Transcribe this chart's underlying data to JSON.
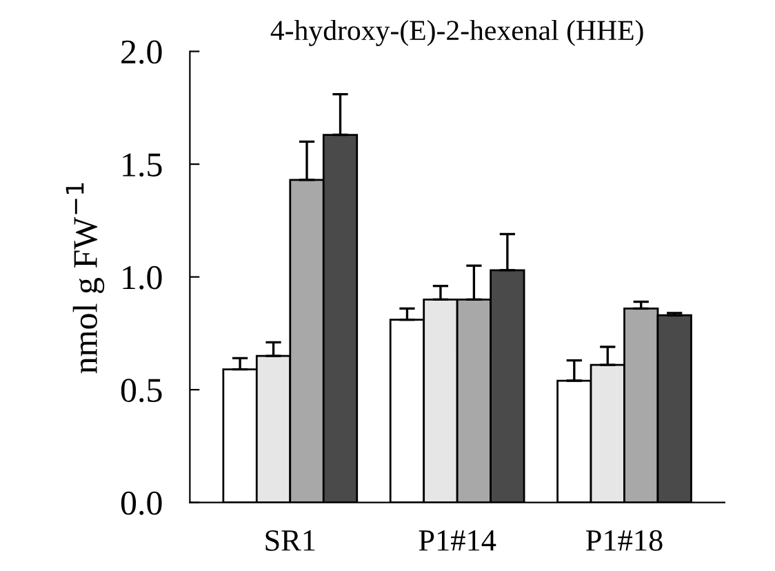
{
  "chart_data": {
    "type": "bar",
    "title": "4-hydroxy-(E)-2-hexenal (HHE)",
    "ylabel": "nmol g FW$^{−1}$",
    "categories": [
      "SR1",
      "P1#14",
      "P1#18"
    ],
    "series": [
      {
        "color": "#ffffff",
        "values": [
          0.59,
          0.81,
          0.54
        ],
        "errors": [
          [
            0.59,
            0.64
          ],
          [
            0.81,
            0.86
          ],
          [
            0.54,
            0.63
          ]
        ]
      },
      {
        "color": "#e6e6e6",
        "values": [
          0.65,
          0.9,
          0.61
        ],
        "errors": [
          [
            0.65,
            0.71
          ],
          [
            0.9,
            0.96
          ],
          [
            0.61,
            0.69
          ]
        ]
      },
      {
        "color": "#a8a8a8",
        "values": [
          1.43,
          0.9,
          0.86
        ],
        "errors": [
          [
            1.43,
            1.6
          ],
          [
            0.9,
            1.05
          ],
          [
            0.86,
            0.89
          ]
        ]
      },
      {
        "color": "#4a4a4a",
        "values": [
          1.63,
          1.03,
          0.83
        ],
        "errors": [
          [
            1.63,
            1.81
          ],
          [
            1.03,
            1.19
          ],
          [
            0.83,
            0.84
          ]
        ]
      }
    ],
    "ylim": [
      0,
      2
    ],
    "yticks": [
      {
        "value": 0,
        "label": "0.0"
      },
      {
        "value": 0.5,
        "label": "0.5"
      },
      {
        "value": 1,
        "label": "1.0"
      },
      {
        "value": 1.5,
        "label": "1.5"
      },
      {
        "value": 2,
        "label": "2.0"
      }
    ],
    "grid": false,
    "legend": false
  }
}
